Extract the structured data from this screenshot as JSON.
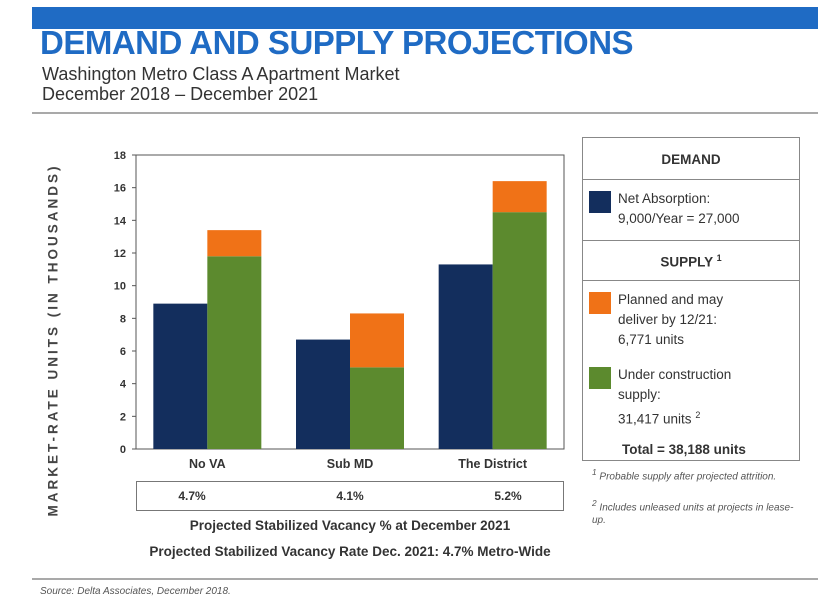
{
  "header": {
    "title": "DEMAND AND SUPPLY PROJECTIONS",
    "subtitle1": "Washington Metro Class A Apartment Market",
    "subtitle2": "December 2018 – December 2021"
  },
  "chart_data": {
    "type": "bar",
    "stacked": true,
    "categories": [
      "No VA",
      "Sub MD",
      "The District"
    ],
    "ylabel": "MARKET-RATE UNITS (IN THOUSANDS)",
    "ylim": [
      0,
      18
    ],
    "yticks": [
      0,
      2,
      4,
      6,
      8,
      10,
      12,
      14,
      16,
      18
    ],
    "series": [
      {
        "name": "Net Absorption: 9,000/Year = 27,000",
        "color": "#132e5d",
        "values": [
          8.9,
          6.7,
          11.3
        ],
        "stack": "demand"
      },
      {
        "name": "Under construction supply: 31,417 units",
        "color": "#5c8a2e",
        "values": [
          11.8,
          5.0,
          14.5
        ],
        "stack": "supply"
      },
      {
        "name": "Planned and may deliver by 12/21: 6,771 units",
        "color": "#f07217",
        "values": [
          1.6,
          3.3,
          1.9
        ],
        "stack": "supply"
      }
    ],
    "grid": false,
    "legend": "right"
  },
  "vacancy": {
    "values": [
      "4.7%",
      "4.1%",
      "5.2%"
    ],
    "caption1": "Projected Stabilized Vacancy % at December 2021",
    "caption2": "Projected Stabilized Vacancy Rate Dec. 2021: 4.7% Metro-Wide"
  },
  "legend": {
    "demand_head": "DEMAND",
    "net_absorption_1": "Net Absorption:",
    "net_absorption_2": "9,000/Year = 27,000",
    "supply_head": "SUPPLY",
    "supply_mark": "1",
    "planned_1": "Planned and may",
    "planned_2": "deliver by 12/21:",
    "planned_3": "6,771 units",
    "construction_1": "Under construction",
    "construction_2": "supply:",
    "construction_3": "31,417 units",
    "construction_mark": "2",
    "total": "Total = 38,188 units"
  },
  "notes": {
    "note1_mark": "1",
    "note1": "Probable supply after projected attrition.",
    "note2_mark": "2",
    "note2": "Includes unleased units at projects in lease-up."
  },
  "source": "Source: Delta Associates, December 2018."
}
